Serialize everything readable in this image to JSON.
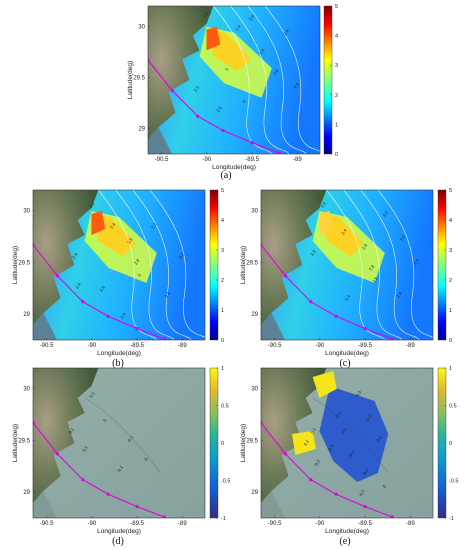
{
  "colors": {
    "accent": "#e000e0",
    "land_dark": "#3f5a39",
    "land_light": "#a99f86",
    "sea_gray": "#8aa6a4",
    "contour": "#ffffff"
  },
  "chart_data": [
    {
      "id": "a",
      "type": "heatmap",
      "caption": "(a)",
      "title": "",
      "xlabel": "Longitude(deg)",
      "ylabel": "Latitude(deg)",
      "x_ticks": [
        "-90.5",
        "-90",
        "-89.5",
        "-89"
      ],
      "y_ticks": [
        "30",
        "29.5",
        "29"
      ],
      "xlim": [
        -90.65,
        -88.75
      ],
      "ylim": [
        28.75,
        30.2
      ],
      "colorbar": {
        "min": 0,
        "max": 5,
        "ticks": [
          "5",
          "4",
          "3",
          "2",
          "1",
          "0"
        ],
        "palette": "jet"
      },
      "contour_labels": [
        "2.2",
        "2.4",
        "2.6",
        "2.8",
        "3",
        "3",
        "2.2",
        "2.6",
        "2.4",
        "2.2",
        "2.6"
      ],
      "track_points": [
        [
          -90.65,
          29.67
        ],
        [
          -90.38,
          29.37
        ],
        [
          -90.1,
          29.12
        ],
        [
          -89.82,
          28.98
        ],
        [
          -89.5,
          28.86
        ],
        [
          -89.2,
          28.76
        ]
      ]
    },
    {
      "id": "b",
      "type": "heatmap",
      "caption": "(b)",
      "title": "",
      "xlabel": "Longitude(deg)",
      "ylabel": "Latitude(deg)",
      "x_ticks": [
        "-90.5",
        "-90",
        "-89.5",
        "-89"
      ],
      "y_ticks": [
        "30",
        "29.5",
        "29"
      ],
      "xlim": [
        -90.65,
        -88.75
      ],
      "ylim": [
        28.75,
        30.2
      ],
      "colorbar": {
        "min": 0,
        "max": 5,
        "ticks": [
          "5",
          "4",
          "3",
          "2",
          "1",
          "0"
        ],
        "palette": "jet"
      },
      "contour_labels": [
        "2.2",
        "2.4",
        "2.6",
        "2.8",
        "3",
        "2.6",
        "2.2",
        "2.4",
        "2.2",
        "2.6",
        "2.4",
        "2.8"
      ],
      "track_points": [
        [
          -90.65,
          29.67
        ],
        [
          -90.38,
          29.37
        ],
        [
          -90.1,
          29.12
        ],
        [
          -89.82,
          28.98
        ],
        [
          -89.5,
          28.86
        ],
        [
          -89.2,
          28.76
        ]
      ]
    },
    {
      "id": "c",
      "type": "heatmap",
      "caption": "(c)",
      "title": "",
      "xlabel": "Longitude(deg)",
      "ylabel": "Latitude(deg)",
      "x_ticks": [
        "-90.5",
        "-90",
        "-89.5",
        "-89"
      ],
      "y_ticks": [
        "30",
        "29.5",
        "29"
      ],
      "xlim": [
        -90.65,
        -88.75
      ],
      "ylim": [
        28.75,
        30.2
      ],
      "colorbar": {
        "min": 0,
        "max": 5,
        "ticks": [
          "5",
          "4",
          "3",
          "2",
          "1",
          "0"
        ],
        "palette": "jet"
      },
      "contour_labels": [
        "2.2",
        "2.4",
        "2.6",
        "2.8",
        "2.5",
        "2.2",
        "2.4",
        "2.6",
        "2.4",
        "2.2",
        "2.2"
      ],
      "track_points": [
        [
          -90.65,
          29.67
        ],
        [
          -90.38,
          29.37
        ],
        [
          -90.1,
          29.12
        ],
        [
          -89.82,
          28.98
        ],
        [
          -89.5,
          28.86
        ],
        [
          -89.2,
          28.76
        ]
      ]
    },
    {
      "id": "d",
      "type": "heatmap",
      "caption": "(d)",
      "title": "",
      "xlabel": "Longitude(deg)",
      "ylabel": "Latitude(deg)",
      "x_ticks": [
        "-90.5",
        "-90",
        "-89.5",
        "-89"
      ],
      "y_ticks": [
        "30",
        "29.5",
        "29"
      ],
      "xlim": [
        -90.65,
        -88.75
      ],
      "ylim": [
        28.75,
        30.2
      ],
      "colorbar": {
        "min": -1,
        "max": 1,
        "ticks": [
          "1",
          "0.5",
          "0",
          "-0.5",
          "-1"
        ],
        "palette": "parula"
      },
      "contour_labels": [
        "0.1",
        "0",
        "-0.1",
        "0.1",
        "0",
        "0.1",
        "-0.1"
      ],
      "track_points": [
        [
          -90.65,
          29.67
        ],
        [
          -90.38,
          29.37
        ],
        [
          -90.1,
          29.12
        ],
        [
          -89.82,
          28.98
        ],
        [
          -89.5,
          28.86
        ],
        [
          -89.2,
          28.76
        ]
      ]
    },
    {
      "id": "e",
      "type": "heatmap",
      "caption": "(e)",
      "title": "",
      "xlabel": "Longitude(deg)",
      "ylabel": "Latitude(deg)",
      "x_ticks": [
        "-90.5",
        "-90",
        "-89.5",
        "-89"
      ],
      "y_ticks": [
        "30",
        "29.5",
        "29"
      ],
      "xlim": [
        -90.65,
        -88.75
      ],
      "ylim": [
        28.75,
        30.2
      ],
      "colorbar": {
        "min": -1,
        "max": 1,
        "ticks": [
          "1",
          "0.5",
          "0",
          "-0.5",
          "-1"
        ],
        "palette": "parula"
      },
      "contour_labels": [
        "-0.3",
        "-0.2",
        "-0.1",
        "0.1",
        "-0.4",
        "-0.3",
        "-0.2",
        "-0.2",
        "-0.1",
        "0",
        "0.1",
        "0.1",
        "-0.2"
      ],
      "track_points": [
        [
          -90.65,
          29.67
        ],
        [
          -90.38,
          29.37
        ],
        [
          -90.1,
          29.12
        ],
        [
          -89.82,
          28.98
        ],
        [
          -89.5,
          28.86
        ],
        [
          -89.2,
          28.76
        ]
      ]
    }
  ]
}
